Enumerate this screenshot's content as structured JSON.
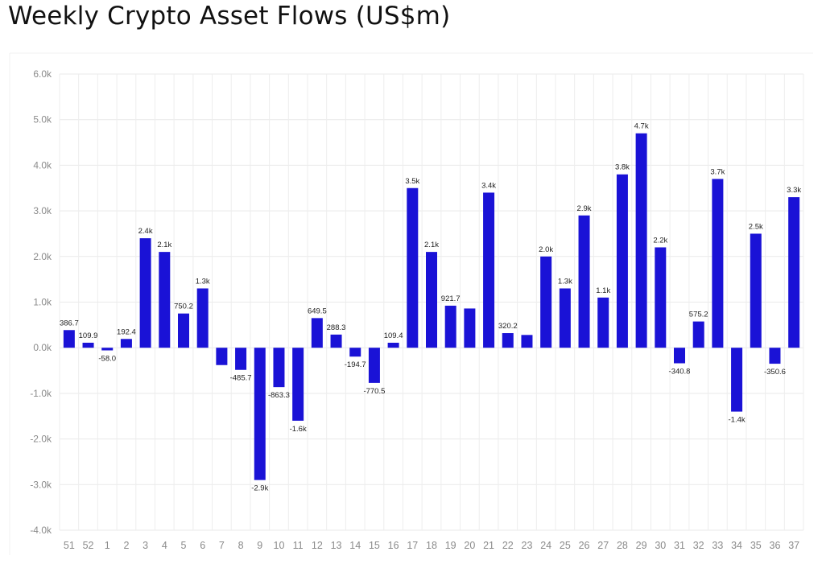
{
  "chart_data": {
    "type": "bar",
    "title": "Weekly Crypto Asset Flows (US$m)",
    "xlabel": "",
    "ylabel": "",
    "ylim": [
      -4000,
      6000
    ],
    "y_ticks": [
      6000,
      5000,
      4000,
      3000,
      2000,
      1000,
      0,
      -1000,
      -2000,
      -3000,
      -4000
    ],
    "y_tick_labels": [
      "6.0k",
      "5.0k",
      "4.0k",
      "3.0k",
      "2.0k",
      "1.0k",
      "0.0k",
      "-1.0k",
      "-2.0k",
      "-3.0k",
      "-4.0k"
    ],
    "grid": true,
    "bar_color": "#1a12d6",
    "categories": [
      "51",
      "52",
      "1",
      "2",
      "3",
      "4",
      "5",
      "6",
      "7",
      "8",
      "9",
      "10",
      "11",
      "12",
      "13",
      "14",
      "15",
      "16",
      "17",
      "18",
      "19",
      "20",
      "21",
      "22",
      "23",
      "24",
      "25",
      "26",
      "27",
      "28",
      "29",
      "30",
      "31",
      "32",
      "33",
      "34",
      "35",
      "36",
      "37"
    ],
    "values": [
      386.7,
      109.9,
      -58.0,
      192.4,
      2400,
      2100,
      750.2,
      1300,
      -380,
      -485.7,
      -2900,
      -863.3,
      -1600,
      649.5,
      288.3,
      -194.7,
      -770.5,
      109.4,
      3500,
      2100,
      921.7,
      860,
      3400,
      320.2,
      280,
      2000,
      1300,
      2900,
      1100,
      3800,
      4700,
      2200,
      -340.8,
      575.2,
      3700,
      -1400,
      2500,
      -350.6,
      3300
    ],
    "labels": [
      "386.7",
      "109.9",
      "-58.0",
      "192.4",
      "2.4k",
      "2.1k",
      "750.2",
      "1.3k",
      "",
      "-485.7",
      "-2.9k",
      "-863.3",
      "-1.6k",
      "649.5",
      "288.3",
      "-194.7",
      "-770.5",
      "109.4",
      "3.5k",
      "2.1k",
      "921.7",
      "",
      "3.4k",
      "320.2",
      "",
      "2.0k",
      "1.3k",
      "2.9k",
      "1.1k",
      "3.8k",
      "4.7k",
      "2.2k",
      "-340.8",
      "575.2",
      "3.7k",
      "-1.4k",
      "2.5k",
      "-350.6",
      "3.3k"
    ]
  }
}
